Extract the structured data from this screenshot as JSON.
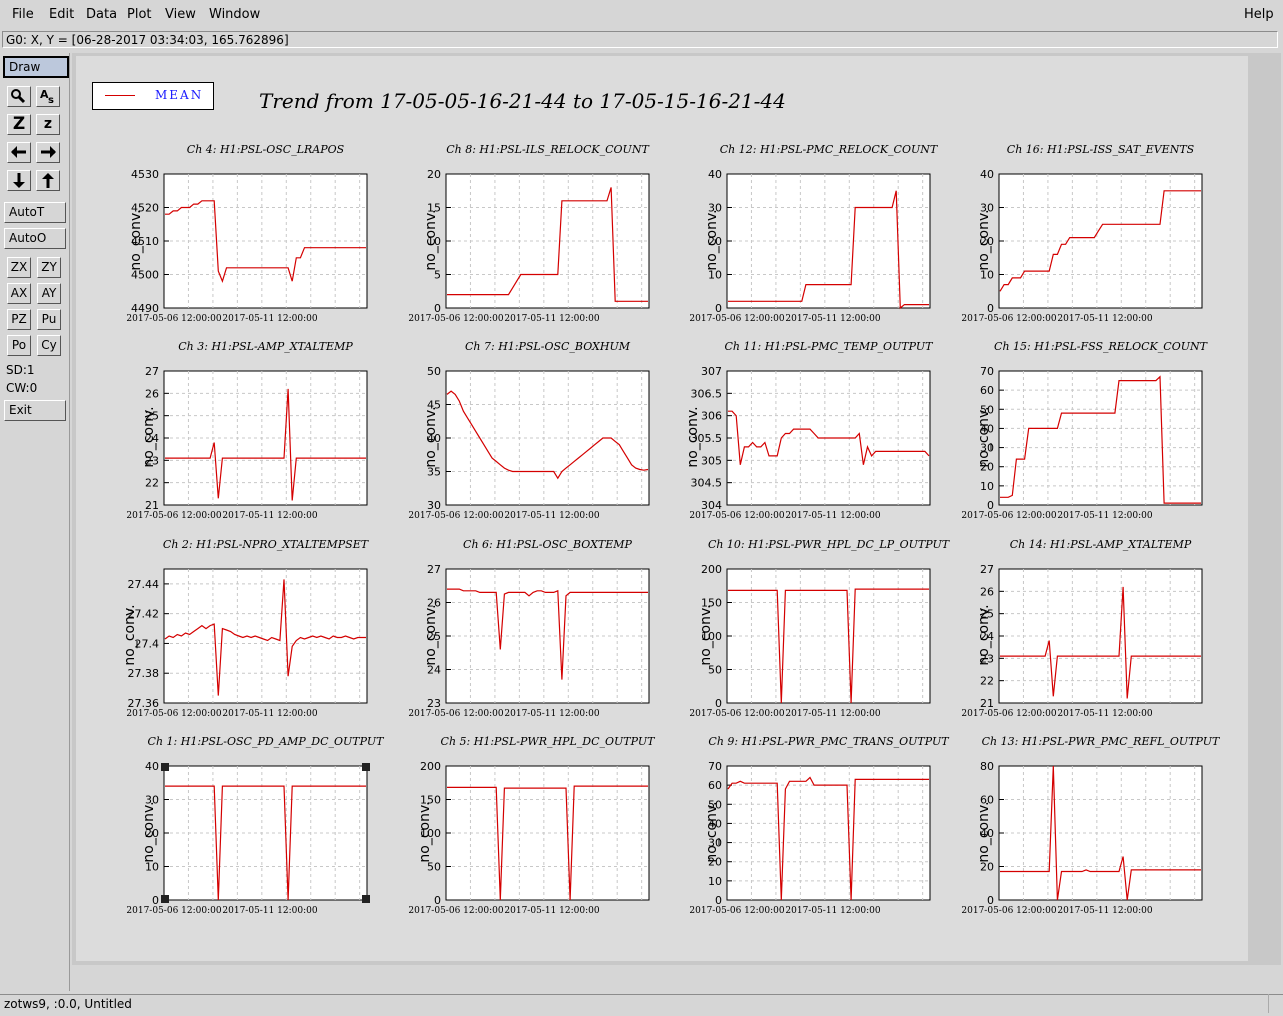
{
  "menu": {
    "file": "File",
    "edit": "Edit",
    "data": "Data",
    "plot": "Plot",
    "view": "View",
    "window": "Window",
    "help": "Help"
  },
  "status": {
    "readout": "G0: X, Y = [06-28-2017 03:34:03, 165.762896]"
  },
  "toolbar": {
    "draw": "Draw",
    "zoom_icon_label": "Z",
    "zoom_small_label": "z",
    "autot": "AutoT",
    "autoo": "AutoO",
    "zx": "ZX",
    "zy": "ZY",
    "ax": "AX",
    "ay": "AY",
    "pz": "PZ",
    "pu": "Pu",
    "po": "Po",
    "cy": "Cy",
    "sd": "SD:1",
    "cw": "CW:0",
    "exit": "Exit"
  },
  "legend": {
    "label": "MEAN",
    "color": "#d40000"
  },
  "main_title": "Trend from 17-05-05-16-21-44 to 17-05-15-16-21-44",
  "bottom": {
    "text": "zotws9, :0.0, Untitled"
  },
  "chart_data": [
    {
      "type": "line",
      "title": "Ch 4: H1:PSL-OSC_LRAPOS",
      "ylabel": "no_conv.",
      "yticks": [
        "4490",
        "4500",
        "4510",
        "4520",
        "4530"
      ],
      "xticks": [
        "2017-05-06 12:00:00",
        "2017-05-11 12:00:00"
      ],
      "ylim": [
        4490,
        4530
      ],
      "y": [
        4518,
        4518,
        4519,
        4519,
        4520,
        4520,
        4520,
        4521,
        4521,
        4522,
        4522,
        4522,
        4522,
        4501,
        4498,
        4502,
        4502,
        4502,
        4502,
        4502,
        4502,
        4502,
        4502,
        4502,
        4502,
        4502,
        4502,
        4502,
        4502,
        4502,
        4502,
        4498,
        4505,
        4505,
        4508,
        4508,
        4508,
        4508,
        4508,
        4508,
        4508,
        4508,
        4508,
        4508,
        4508,
        4508,
        4508,
        4508,
        4508,
        4508
      ]
    },
    {
      "type": "line",
      "title": "Ch 8: H1:PSL-ILS_RELOCK_COUNT",
      "ylabel": "no_conv.",
      "yticks": [
        "0",
        "5",
        "10",
        "15",
        "20"
      ],
      "xticks": [
        "2017-05-06 12:00:00",
        "2017-05-11 12:00:00"
      ],
      "ylim": [
        0,
        20
      ],
      "y": [
        2,
        2,
        2,
        2,
        2,
        2,
        2,
        2,
        2,
        2,
        2,
        2,
        2,
        2,
        2,
        2,
        3,
        4,
        5,
        5,
        5,
        5,
        5,
        5,
        5,
        5,
        5,
        5,
        16,
        16,
        16,
        16,
        16,
        16,
        16,
        16,
        16,
        16,
        16,
        16,
        18,
        1,
        1,
        1,
        1,
        1,
        1,
        1,
        1,
        1
      ]
    },
    {
      "type": "line",
      "title": "Ch 12: H1:PSL-PMC_RELOCK_COUNT",
      "ylabel": "no_conv.",
      "yticks": [
        "0",
        "10",
        "20",
        "30",
        "40"
      ],
      "xticks": [
        "2017-05-06 12:00:00",
        "2017-05-11 12:00:00"
      ],
      "ylim": [
        0,
        40
      ],
      "y": [
        2,
        2,
        2,
        2,
        2,
        2,
        2,
        2,
        2,
        2,
        2,
        2,
        2,
        2,
        2,
        2,
        2,
        2,
        2,
        7,
        7,
        7,
        7,
        7,
        7,
        7,
        7,
        7,
        7,
        7,
        7,
        30,
        30,
        30,
        30,
        30,
        30,
        30,
        30,
        30,
        30,
        35,
        0,
        1,
        1,
        1,
        1,
        1,
        1,
        1
      ]
    },
    {
      "type": "line",
      "title": "Ch 16: H1:PSL-ISS_SAT_EVENTS",
      "ylabel": "no_conv.",
      "yticks": [
        "0",
        "10",
        "20",
        "30",
        "40"
      ],
      "xticks": [
        "2017-05-06 12:00:00",
        "2017-05-11 12:00:00"
      ],
      "ylim": [
        0,
        40
      ],
      "y": [
        5,
        7,
        7,
        9,
        9,
        9,
        11,
        11,
        11,
        11,
        11,
        11,
        11,
        16,
        16,
        19,
        19,
        21,
        21,
        21,
        21,
        21,
        21,
        21,
        23,
        25,
        25,
        25,
        25,
        25,
        25,
        25,
        25,
        25,
        25,
        25,
        25,
        25,
        25,
        25,
        35,
        35,
        35,
        35,
        35,
        35,
        35,
        35,
        35,
        35
      ]
    },
    {
      "type": "line",
      "title": "Ch 3: H1:PSL-AMP_XTALTEMP",
      "ylabel": "no_conv.",
      "yticks": [
        "21",
        "22",
        "23",
        "24",
        "25",
        "26",
        "27"
      ],
      "xticks": [
        "2017-05-06 12:00:00",
        "2017-05-11 12:00:00"
      ],
      "ylim": [
        21,
        27
      ],
      "y": [
        23.1,
        23.1,
        23.1,
        23.1,
        23.1,
        23.1,
        23.1,
        23.1,
        23.1,
        23.1,
        23.1,
        23.1,
        23.8,
        21.3,
        23.1,
        23.1,
        23.1,
        23.1,
        23.1,
        23.1,
        23.1,
        23.1,
        23.1,
        23.1,
        23.1,
        23.1,
        23.1,
        23.1,
        23.1,
        23.1,
        26.2,
        21.2,
        23.1,
        23.1,
        23.1,
        23.1,
        23.1,
        23.1,
        23.1,
        23.1,
        23.1,
        23.1,
        23.1,
        23.1,
        23.1,
        23.1,
        23.1,
        23.1,
        23.1,
        23.1
      ]
    },
    {
      "type": "line",
      "title": "Ch 7: H1:PSL-OSC_BOXHUM",
      "ylabel": "no_conv.",
      "yticks": [
        "30",
        "35",
        "40",
        "45",
        "50"
      ],
      "xticks": [
        "2017-05-06 12:00:00",
        "2017-05-11 12:00:00"
      ],
      "ylim": [
        30,
        50
      ],
      "y": [
        46.5,
        47,
        46.5,
        45.5,
        44,
        43,
        42,
        41,
        40,
        39,
        38,
        37,
        36.5,
        36,
        35.5,
        35.2,
        35,
        35,
        35,
        35,
        35,
        35,
        35,
        35,
        35,
        35,
        35,
        34,
        35,
        35.5,
        36,
        36.5,
        37,
        37.5,
        38,
        38.5,
        39,
        39.5,
        40,
        40,
        40,
        39.5,
        39,
        38,
        37,
        36,
        35.5,
        35.3,
        35.2,
        35.3
      ]
    },
    {
      "type": "line",
      "title": "Ch 11: H1:PSL-PMC_TEMP_OUTPUT",
      "ylabel": "no_conv.",
      "yticks": [
        "304",
        "304.5",
        "305",
        "305.5",
        "306",
        "306.5",
        "307"
      ],
      "xticks": [
        "2017-05-06 12:00:00",
        "2017-05-11 12:00:00"
      ],
      "ylim": [
        304,
        307
      ],
      "y": [
        306.1,
        306.1,
        306,
        304.9,
        305.3,
        305.3,
        305.4,
        305.3,
        305.3,
        305.4,
        305.1,
        305.1,
        305.1,
        305.5,
        305.6,
        305.6,
        305.7,
        305.7,
        305.7,
        305.7,
        305.7,
        305.6,
        305.5,
        305.5,
        305.5,
        305.5,
        305.5,
        305.5,
        305.5,
        305.5,
        305.5,
        305.5,
        305.6,
        304.9,
        305.3,
        305.1,
        305.2,
        305.2,
        305.2,
        305.2,
        305.2,
        305.2,
        305.2,
        305.2,
        305.2,
        305.2,
        305.2,
        305.2,
        305.2,
        305.1
      ]
    },
    {
      "type": "line",
      "title": "Ch 15: H1:PSL-FSS_RELOCK_COUNT",
      "ylabel": "no_conv.",
      "yticks": [
        "0",
        "10",
        "20",
        "30",
        "40",
        "50",
        "60",
        "70"
      ],
      "xticks": [
        "2017-05-06 12:00:00",
        "2017-05-11 12:00:00"
      ],
      "ylim": [
        0,
        70
      ],
      "y": [
        4,
        4,
        4,
        5,
        24,
        24,
        24,
        40,
        40,
        40,
        40,
        40,
        40,
        40,
        40,
        48,
        48,
        48,
        48,
        48,
        48,
        48,
        48,
        48,
        48,
        48,
        48,
        48,
        48,
        65,
        65,
        65,
        65,
        65,
        65,
        65,
        65,
        65,
        65,
        67,
        1,
        1,
        1,
        1,
        1,
        1,
        1,
        1,
        1,
        1
      ]
    },
    {
      "type": "line",
      "title": "Ch 2: H1:PSL-NPRO_XTALTEMPSET",
      "ylabel": "no_conv.",
      "yticks": [
        "27.36",
        "27.38",
        "27.4",
        "27.42",
        "27.44"
      ],
      "xticks": [
        "2017-05-06 12:00:00",
        "2017-05-11 12:00:00"
      ],
      "ylim": [
        27.36,
        27.45
      ],
      "y": [
        27.403,
        27.405,
        27.404,
        27.406,
        27.405,
        27.407,
        27.406,
        27.408,
        27.41,
        27.412,
        27.41,
        27.412,
        27.413,
        27.365,
        27.41,
        27.409,
        27.408,
        27.406,
        27.405,
        27.404,
        27.405,
        27.404,
        27.405,
        27.404,
        27.403,
        27.402,
        27.404,
        27.403,
        27.402,
        27.443,
        27.378,
        27.398,
        27.402,
        27.404,
        27.403,
        27.404,
        27.405,
        27.404,
        27.405,
        27.404,
        27.403,
        27.405,
        27.404,
        27.404,
        27.405,
        27.404,
        27.403,
        27.404,
        27.404,
        27.404
      ]
    },
    {
      "type": "line",
      "title": "Ch 6: H1:PSL-OSC_BOXTEMP",
      "ylabel": "no_conv.",
      "yticks": [
        "23",
        "24",
        "25",
        "26",
        "27"
      ],
      "xticks": [
        "2017-05-06 12:00:00",
        "2017-05-11 12:00:00"
      ],
      "ylim": [
        23,
        27
      ],
      "y": [
        26.4,
        26.4,
        26.4,
        26.4,
        26.35,
        26.35,
        26.35,
        26.35,
        26.3,
        26.3,
        26.3,
        26.3,
        26.3,
        24.6,
        26.25,
        26.3,
        26.3,
        26.3,
        26.3,
        26.3,
        26.2,
        26.3,
        26.35,
        26.35,
        26.3,
        26.3,
        26.3,
        26.35,
        23.7,
        26.2,
        26.3,
        26.3,
        26.3,
        26.3,
        26.3,
        26.3,
        26.3,
        26.3,
        26.3,
        26.3,
        26.3,
        26.3,
        26.3,
        26.3,
        26.3,
        26.3,
        26.3,
        26.3,
        26.3,
        26.3
      ]
    },
    {
      "type": "line",
      "title": "Ch 10: H1:PSL-PWR_HPL_DC_LP_OUTPUT",
      "ylabel": "no_conv.",
      "yticks": [
        "0",
        "50",
        "100",
        "150",
        "200"
      ],
      "xticks": [
        "2017-05-06 12:00:00",
        "2017-05-11 12:00:00"
      ],
      "ylim": [
        0,
        200
      ],
      "y": [
        168,
        168,
        168,
        168,
        168,
        168,
        168,
        168,
        168,
        168,
        168,
        168,
        168,
        0,
        168,
        168,
        168,
        168,
        168,
        168,
        168,
        168,
        168,
        168,
        168,
        168,
        168,
        168,
        168,
        168,
        0,
        170,
        170,
        170,
        170,
        170,
        170,
        170,
        170,
        170,
        170,
        170,
        170,
        170,
        170,
        170,
        170,
        170,
        170,
        170
      ]
    },
    {
      "type": "line",
      "title": "Ch 14: H1:PSL-AMP_XTALTEMP",
      "ylabel": "no_conv.",
      "yticks": [
        "21",
        "22",
        "23",
        "24",
        "25",
        "26",
        "27"
      ],
      "xticks": [
        "2017-05-06 12:00:00",
        "2017-05-11 12:00:00"
      ],
      "ylim": [
        21,
        27
      ],
      "y": [
        23.1,
        23.1,
        23.1,
        23.1,
        23.1,
        23.1,
        23.1,
        23.1,
        23.1,
        23.1,
        23.1,
        23.1,
        23.8,
        21.3,
        23.1,
        23.1,
        23.1,
        23.1,
        23.1,
        23.1,
        23.1,
        23.1,
        23.1,
        23.1,
        23.1,
        23.1,
        23.1,
        23.1,
        23.1,
        23.1,
        26.2,
        21.2,
        23.1,
        23.1,
        23.1,
        23.1,
        23.1,
        23.1,
        23.1,
        23.1,
        23.1,
        23.1,
        23.1,
        23.1,
        23.1,
        23.1,
        23.1,
        23.1,
        23.1,
        23.1
      ]
    },
    {
      "type": "line",
      "title": "Ch 1: H1:PSL-OSC_PD_AMP_DC_OUTPUT",
      "ylabel": "no_conv.",
      "yticks": [
        "0",
        "10",
        "20",
        "30",
        "40"
      ],
      "xticks": [
        "2017-05-06 12:00:00",
        "2017-05-11 12:00:00"
      ],
      "ylim": [
        0,
        40
      ],
      "y": [
        34,
        34,
        34,
        34,
        34,
        34,
        34,
        34,
        34,
        34,
        34,
        34,
        34,
        0,
        34,
        34,
        34,
        34,
        34,
        34,
        34,
        34,
        34,
        34,
        34,
        34,
        34,
        34,
        34,
        34,
        0,
        34,
        34,
        34,
        34,
        34,
        34,
        34,
        34,
        34,
        34,
        34,
        34,
        34,
        34,
        34,
        34,
        34,
        34,
        34
      ]
    },
    {
      "type": "line",
      "title": "Ch 5: H1:PSL-PWR_HPL_DC_OUTPUT",
      "ylabel": "no_conv.",
      "yticks": [
        "0",
        "50",
        "100",
        "150",
        "200"
      ],
      "xticks": [
        "2017-05-06 12:00:00",
        "2017-05-11 12:00:00"
      ],
      "ylim": [
        0,
        200
      ],
      "y": [
        168,
        168,
        168,
        168,
        168,
        168,
        168,
        168,
        168,
        168,
        168,
        168,
        168,
        0,
        167,
        167,
        167,
        167,
        167,
        167,
        167,
        167,
        167,
        167,
        167,
        167,
        167,
        167,
        167,
        167,
        0,
        170,
        170,
        170,
        170,
        170,
        170,
        170,
        170,
        170,
        170,
        170,
        170,
        170,
        170,
        170,
        170,
        170,
        170,
        170
      ]
    },
    {
      "type": "line",
      "title": "Ch 9: H1:PSL-PWR_PMC_TRANS_OUTPUT",
      "ylabel": "no_conv.",
      "yticks": [
        "0",
        "10",
        "20",
        "30",
        "40",
        "50",
        "60",
        "70"
      ],
      "xticks": [
        "2017-05-06 12:00:00",
        "2017-05-11 12:00:00"
      ],
      "ylim": [
        0,
        70
      ],
      "y": [
        58,
        61,
        61,
        62,
        61,
        61,
        61,
        61,
        61,
        61,
        61,
        61,
        61,
        0,
        58,
        62,
        62,
        62,
        62,
        62,
        64,
        60,
        60,
        60,
        60,
        60,
        60,
        60,
        60,
        60,
        0,
        63,
        63,
        63,
        63,
        63,
        63,
        63,
        63,
        63,
        63,
        63,
        63,
        63,
        63,
        63,
        63,
        63,
        63,
        63
      ]
    },
    {
      "type": "line",
      "title": "Ch 13: H1:PSL-PWR_PMC_REFL_OUTPUT",
      "ylabel": "no_conv.",
      "yticks": [
        "0",
        "20",
        "40",
        "60",
        "80"
      ],
      "xticks": [
        "2017-05-06 12:00:00",
        "2017-05-11 12:00:00"
      ],
      "ylim": [
        0,
        80
      ],
      "y": [
        17,
        17,
        17,
        17,
        17,
        17,
        17,
        17,
        17,
        17,
        17,
        17,
        17,
        80,
        0,
        17,
        17,
        17,
        17,
        17,
        17,
        18,
        17,
        17,
        17,
        17,
        17,
        17,
        17,
        17,
        26,
        0,
        18,
        18,
        18,
        18,
        18,
        18,
        18,
        18,
        18,
        18,
        18,
        18,
        18,
        18,
        18,
        18,
        18,
        18
      ]
    }
  ]
}
